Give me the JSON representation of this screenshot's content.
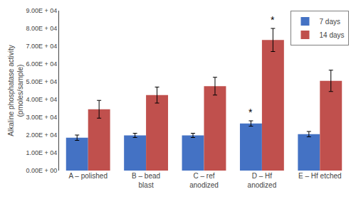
{
  "chart_data": {
    "type": "bar",
    "categories": [
      "A – polished",
      "B – bead\nblast",
      "C – ref\nanodized",
      "D – Hf\nanodized",
      "E – Hf etched"
    ],
    "series": [
      {
        "name": "7 days",
        "color": "#4472c4",
        "values": [
          18500,
          19800,
          19800,
          26500,
          20500
        ],
        "errors": [
          1500,
          1200,
          1200,
          1500,
          1500
        ]
      },
      {
        "name": "14 days",
        "color": "#c0504d",
        "values": [
          34500,
          42500,
          47500,
          73500,
          50500
        ],
        "errors": [
          5000,
          4500,
          5000,
          6500,
          6000
        ]
      }
    ],
    "ylabel": "Alkaline phosphatase activity\n(pmoles/sample)",
    "ylim": [
      0,
      90000
    ],
    "yticks": [
      {
        "value": 0,
        "label": "0.00E + 00"
      },
      {
        "value": 10000,
        "label": "1.00E + 04"
      },
      {
        "value": 20000,
        "label": "2.00E + 04"
      },
      {
        "value": 30000,
        "label": "3.00E + 04"
      },
      {
        "value": 40000,
        "label": "4.00E + 04"
      },
      {
        "value": 50000,
        "label": "5.00E + 04"
      },
      {
        "value": 60000,
        "label": "6.00E + 04"
      },
      {
        "value": 70000,
        "label": "7.00E + 04"
      },
      {
        "value": 80000,
        "label": "8.00E + 04"
      },
      {
        "value": 90000,
        "label": "9.00E + 04"
      }
    ],
    "annotations": [
      {
        "text": "*",
        "category": "D – Hf\nanodized",
        "series": "7 days"
      },
      {
        "text": "*",
        "category": "D – Hf\nanodized",
        "series": "14 days"
      }
    ],
    "grid": false,
    "legend": "upper right"
  }
}
